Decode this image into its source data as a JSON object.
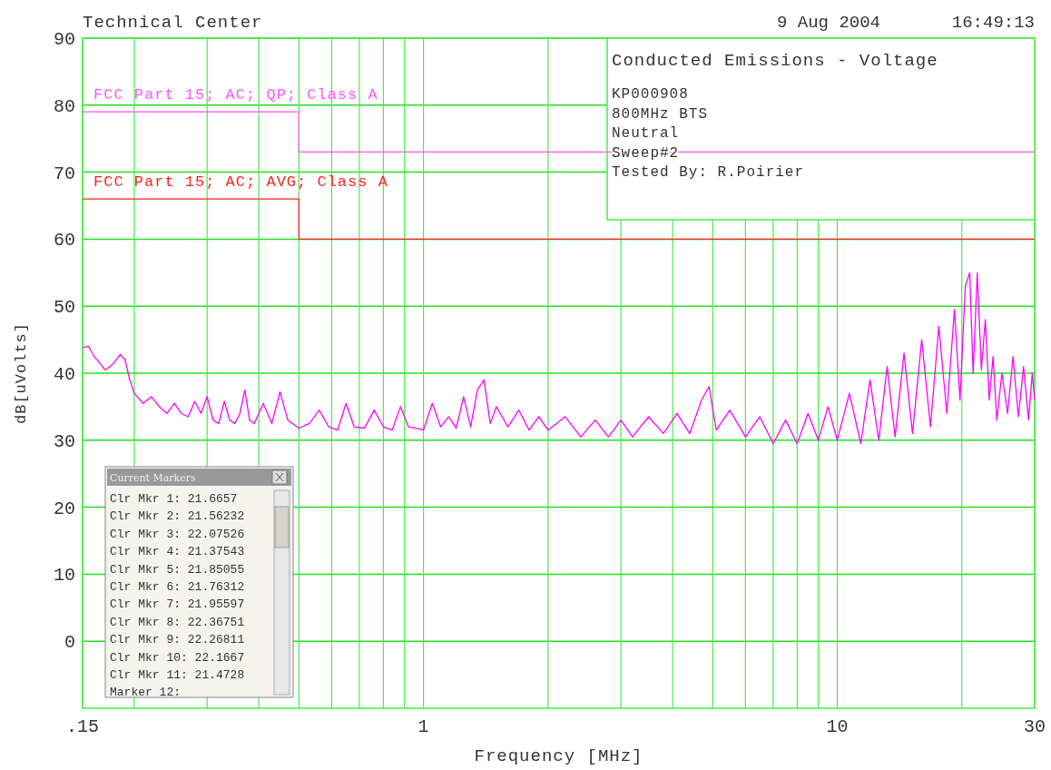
{
  "chart_data": {
    "type": "line",
    "title": "Technical Center",
    "xlabel": "Frequency [MHz]",
    "ylabel": "dB[uVolts]",
    "annotations": [
      "9 Aug 2004",
      "16:49:13",
      "Conducted Emissions - Voltage",
      "KP000908",
      "800MHz BTS",
      "Neutral",
      "Sweep#2",
      "Tested By: R.Poirier",
      "Current Markers",
      "Clr Mkr 1: 21.6657",
      "Clr Mkr 2: 21.56232",
      "Clr Mkr 3: 22.07526",
      "Clr Mkr 4: 21.37543",
      "Clr Mkr 5: 21.85055",
      "Clr Mkr 6: 21.76312",
      "Clr Mkr 7: 21.95597",
      "Clr Mkr 8: 22.36751",
      "Clr Mkr 9: 22.26811",
      "Clr Mkr 10: 22.1667",
      "Clr Mkr 11: 21.4728",
      "Marker 12:"
    ],
    "log": "x",
    "grid": true,
    "legend": false,
    "marker": "none",
    "line_style": "solid",
    "xlim": [
      0.15,
      30
    ],
    "ylim": [
      -10,
      90
    ],
    "xticks": [
      {
        "value": 0.15,
        "label": ".15"
      },
      {
        "value": 0.2,
        "label": null
      },
      {
        "value": 0.3,
        "label": null
      },
      {
        "value": 0.4,
        "label": null
      },
      {
        "value": 0.5,
        "label": null
      },
      {
        "value": 0.6,
        "label": null
      },
      {
        "value": 0.7,
        "label": null
      },
      {
        "value": 0.8,
        "label": null
      },
      {
        "value": 0.9,
        "label": null
      },
      1,
      {
        "value": 2,
        "label": null
      },
      {
        "value": 3,
        "label": null
      },
      {
        "value": 4,
        "label": null
      },
      {
        "value": 5,
        "label": null
      },
      {
        "value": 6,
        "label": null
      },
      {
        "value": 7,
        "label": null
      },
      {
        "value": 8,
        "label": null
      },
      {
        "value": 9,
        "label": null
      },
      10,
      {
        "value": 20,
        "label": null
      },
      30
    ],
    "yticks": [
      0,
      10,
      20,
      30,
      40,
      50,
      60,
      70,
      80,
      90
    ],
    "series": [
      {
        "type": "step",
        "name": "FCC Part 15; AC; QP; Class A",
        "color": "#ff55ff",
        "x": [
          0.15,
          0.5,
          30
        ],
        "values": [
          79,
          73,
          73
        ]
      },
      {
        "type": "step",
        "name": "FCC Part 15; AC; AVG; Class A",
        "color": "#ff2222",
        "x": [
          0.15,
          0.5,
          30
        ],
        "values": [
          66,
          60,
          60
        ]
      },
      {
        "color": "#ff00ff",
        "x": [
          0.15,
          0.155,
          0.16,
          0.165,
          0.17,
          0.175,
          0.18,
          0.185,
          0.19,
          0.195,
          0.2,
          0.21,
          0.22,
          0.23,
          0.24,
          0.25,
          0.26,
          0.27,
          0.28,
          0.29,
          0.3,
          0.31,
          0.32,
          0.33,
          0.34,
          0.35,
          0.36,
          0.37,
          0.38,
          0.39,
          0.41,
          0.43,
          0.45,
          0.47,
          0.5,
          0.53,
          0.56,
          0.59,
          0.62,
          0.65,
          0.68,
          0.72,
          0.76,
          0.8,
          0.84,
          0.88,
          0.92,
          0.96,
          1.0,
          1.05,
          1.1,
          1.15,
          1.2,
          1.25,
          1.3,
          1.35,
          1.4,
          1.45,
          1.5,
          1.6,
          1.7,
          1.8,
          1.9,
          2.0,
          2.2,
          2.4,
          2.6,
          2.8,
          3.0,
          3.2,
          3.5,
          3.8,
          4.1,
          4.4,
          4.7,
          4.9,
          5.1,
          5.5,
          6.0,
          6.5,
          7.0,
          7.5,
          8.0,
          8.5,
          9.0,
          9.5,
          10,
          10.7,
          11.4,
          12,
          12.6,
          13.2,
          13.8,
          14.5,
          15.2,
          16,
          16.8,
          17.6,
          18.4,
          19.2,
          19.8,
          20.4,
          20.9,
          21.3,
          21.8,
          22.3,
          22.8,
          23.3,
          23.8,
          24.3,
          25,
          25.8,
          26.6,
          27.4,
          28.2,
          29,
          29.6,
          30
        ],
        "values": [
          43.8,
          44,
          42.5,
          41.5,
          40.5,
          41,
          41.8,
          42.8,
          42,
          39,
          37,
          35.5,
          36.5,
          35,
          34,
          35.5,
          34,
          33.5,
          35.8,
          34,
          36.5,
          33,
          32.5,
          35.8,
          33,
          32.5,
          34,
          37.5,
          33,
          32.5,
          35.5,
          32.5,
          37.2,
          33,
          31.8,
          32.5,
          34.5,
          32,
          31.5,
          35.5,
          32,
          31.8,
          34.5,
          32,
          31.5,
          35,
          32,
          31.8,
          31.5,
          35.5,
          32,
          33.5,
          31.8,
          36.5,
          32,
          37.5,
          39,
          32.5,
          35,
          32,
          34.5,
          31.5,
          33.5,
          31.5,
          33.5,
          30.5,
          33,
          30.5,
          33,
          30.5,
          33.5,
          31,
          34,
          31,
          36,
          38,
          31.5,
          34.5,
          30.5,
          33.5,
          29.5,
          33,
          29.5,
          34,
          30,
          35,
          30,
          37,
          29.5,
          39,
          30,
          41,
          30.5,
          43,
          31,
          45,
          32,
          47,
          34,
          49.5,
          36,
          53,
          55,
          40,
          55,
          40.5,
          48,
          36,
          42.5,
          33,
          40,
          34,
          42.5,
          33.5,
          41,
          33,
          40,
          36
        ]
      }
    ]
  }
}
